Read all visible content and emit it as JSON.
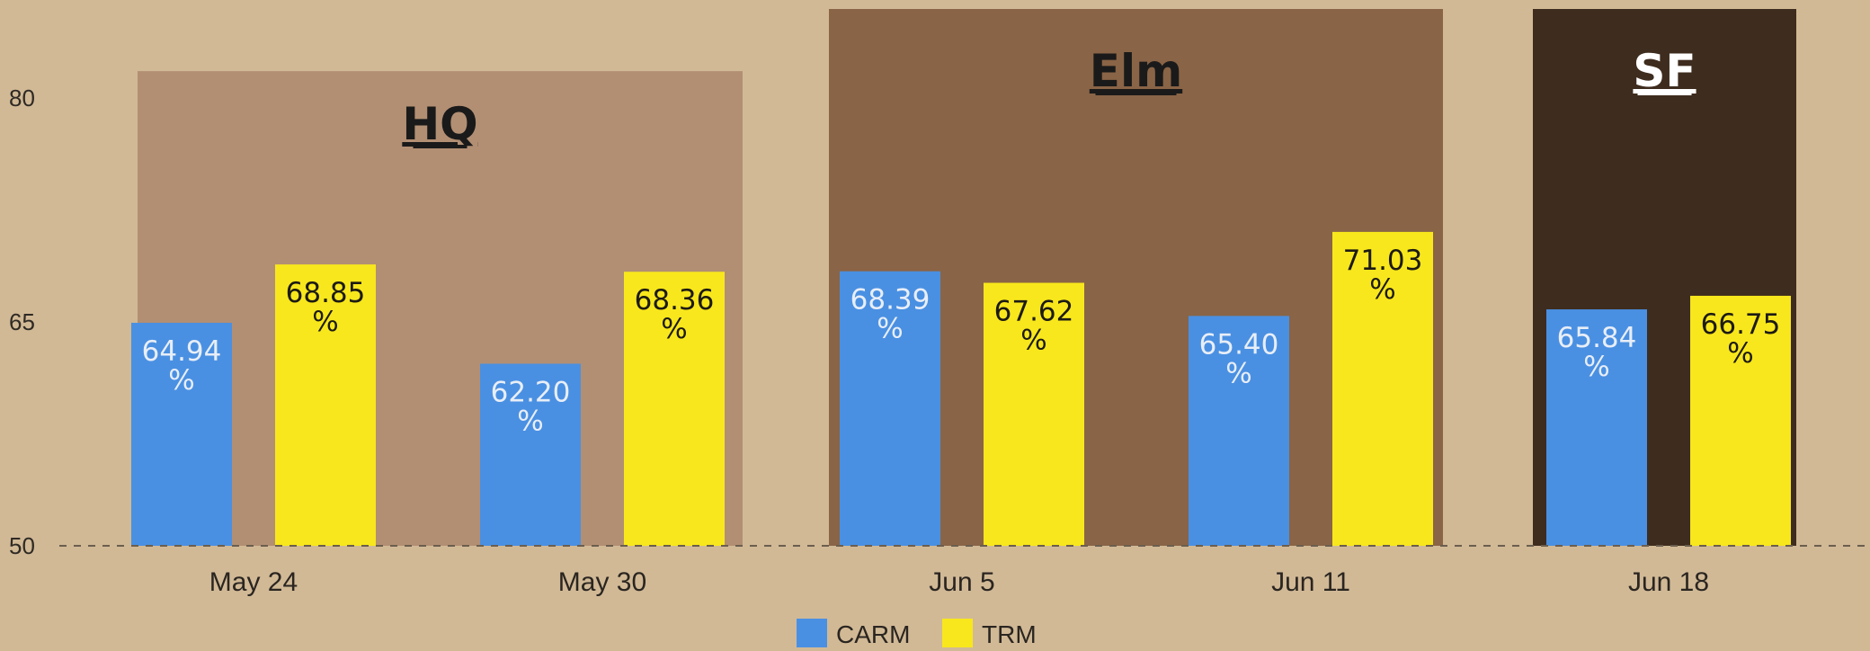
{
  "chart_data": {
    "type": "bar",
    "title": "",
    "xlabel": "",
    "ylabel": "",
    "ylim": [
      50,
      82
    ],
    "yticks": [
      "50",
      "65",
      "80"
    ],
    "categories": [
      "May 24",
      "May 30",
      "Jun 5",
      "Jun 11",
      "Jun 18"
    ],
    "series": [
      {
        "name": "CARM",
        "color": "#4a90e2",
        "values": [
          64.94,
          62.2,
          68.39,
          65.4,
          65.84
        ],
        "labels": [
          "64.94",
          "62.20",
          "68.39",
          "65.40",
          "65.84"
        ],
        "label_color": "#e8eef7"
      },
      {
        "name": "TRM",
        "color": "#f8e71c",
        "values": [
          68.85,
          68.36,
          67.62,
          71.03,
          66.75
        ],
        "labels": [
          "68.85",
          "68.36",
          "67.62",
          "71.03",
          "66.75"
        ],
        "label_color": "#1c1a14"
      }
    ],
    "percent_sign": "%",
    "regions": [
      {
        "title": "HQ",
        "categories": [
          "May 24",
          "May 30"
        ],
        "color": "#b28f73",
        "title_color": "#1a1a1a",
        "top_value": 81.8
      },
      {
        "title": "Elm",
        "categories": [
          "Jun 5",
          "Jun 11"
        ],
        "color": "#8a6446",
        "title_color": "#1a1a1a",
        "top_value": 86
      },
      {
        "title": "SF",
        "categories": [
          "Jun 18"
        ],
        "color": "#3e2c1e",
        "title_color": "#ffffff",
        "top_value": 86
      }
    ],
    "baseline_style": "dashed",
    "legend_position": "bottom-center",
    "grid": false
  }
}
